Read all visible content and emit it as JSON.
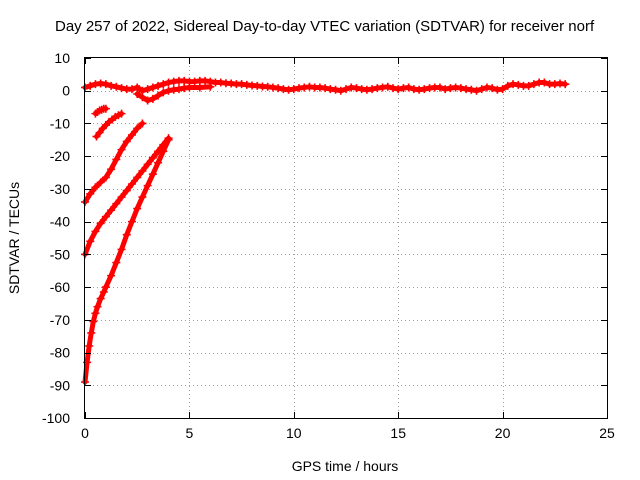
{
  "chart_data": {
    "type": "scatter",
    "title": "Day 257 of 2022, Sidereal Day-to-day VTEC variation (SDTVAR) for receiver norf",
    "xlabel": "GPS time / hours",
    "ylabel": "SDTVAR / TECUs",
    "xlim": [
      0,
      25
    ],
    "ylim": [
      -100,
      10
    ],
    "xticks": [
      0,
      5,
      10,
      15,
      20,
      25
    ],
    "yticks": [
      -100,
      -90,
      -80,
      -70,
      -60,
      -50,
      -40,
      -30,
      -20,
      -10,
      0,
      10
    ],
    "grid": true,
    "marker": "+",
    "color": "#ff0000",
    "series": [
      {
        "x": [
          0.0,
          0.25,
          0.5,
          0.75,
          1.0,
          1.25,
          1.5,
          1.75,
          2.0,
          2.25,
          2.5,
          2.6,
          2.75,
          3.0,
          3.25,
          3.5,
          3.75,
          4.0,
          4.25,
          4.5,
          4.75,
          5.0,
          5.25,
          5.5,
          5.75,
          6.0,
          6.25,
          6.5,
          6.75,
          7.0,
          7.25,
          7.5,
          7.75,
          8.0,
          8.25,
          8.5,
          8.75,
          9.0,
          9.25,
          9.5,
          9.75,
          10.0,
          10.25,
          10.5,
          10.75,
          11.0,
          11.25,
          11.5,
          11.75,
          12.0,
          12.25,
          12.5,
          12.75,
          13.0,
          13.25,
          13.5,
          13.75,
          14.0,
          14.25,
          14.5,
          14.75,
          15.0,
          15.25,
          15.5,
          15.75,
          16.0,
          16.25,
          16.5,
          16.75,
          17.0,
          17.25,
          17.5,
          17.75,
          18.0,
          18.25,
          18.5,
          18.75,
          19.0,
          19.25,
          19.5,
          19.75,
          20.0,
          20.25,
          20.5,
          20.75,
          21.0,
          21.25,
          21.5,
          21.75,
          22.0,
          22.25,
          22.5,
          22.75,
          23.0
        ],
        "y": [
          1.0,
          1.5,
          2.0,
          2.2,
          2.0,
          1.5,
          1.2,
          0.8,
          0.5,
          0.5,
          1.0,
          0.5,
          0.0,
          0.5,
          1.0,
          1.5,
          2.0,
          2.5,
          2.8,
          3.0,
          3.0,
          2.8,
          2.8,
          3.0,
          3.0,
          2.8,
          2.5,
          2.5,
          2.3,
          2.2,
          2.0,
          2.0,
          1.8,
          1.6,
          1.5,
          1.3,
          1.2,
          1.0,
          0.8,
          0.5,
          0.3,
          0.5,
          0.8,
          1.0,
          1.2,
          1.0,
          1.0,
          0.8,
          0.5,
          0.3,
          0.0,
          0.5,
          1.0,
          0.8,
          0.5,
          0.3,
          0.5,
          0.8,
          1.0,
          1.2,
          0.8,
          0.5,
          0.8,
          1.0,
          0.5,
          0.3,
          0.5,
          0.8,
          1.0,
          1.0,
          0.5,
          0.8,
          1.0,
          0.8,
          0.5,
          0.3,
          0.0,
          0.5,
          1.0,
          0.8,
          0.3,
          0.5,
          1.5,
          2.0,
          1.8,
          1.5,
          1.5,
          2.0,
          2.5,
          2.5,
          2.0,
          2.0,
          2.2,
          2.0
        ]
      },
      {
        "x": [
          2.5,
          2.75,
          3.0,
          3.25,
          3.5,
          3.75,
          4.0,
          4.25,
          4.5,
          4.75,
          5.0,
          5.5,
          6.0
        ],
        "y": [
          -1.0,
          -2.0,
          -3.0,
          -2.5,
          -1.5,
          -0.5,
          0.0,
          0.3,
          0.5,
          0.8,
          1.0,
          1.0,
          1.2
        ]
      },
      {
        "x": [
          0.5,
          0.6,
          0.7,
          0.8,
          0.9,
          1.0
        ],
        "y": [
          -7.0,
          -6.5,
          -6.0,
          -5.8,
          -5.5,
          -5.5
        ]
      },
      {
        "x": [
          0.55,
          0.7,
          0.85,
          1.0,
          1.15,
          1.3,
          1.45,
          1.6,
          1.75
        ],
        "y": [
          -14.0,
          -12.8,
          -11.5,
          -10.5,
          -9.5,
          -8.8,
          -8.0,
          -7.5,
          -7.0
        ]
      },
      {
        "x": [
          0.0,
          0.25,
          0.5,
          0.75,
          1.0,
          1.25,
          1.5,
          1.75,
          2.0,
          2.25,
          2.5,
          2.75
        ],
        "y": [
          -34.0,
          -31.5,
          -29.5,
          -28.0,
          -26.5,
          -24.0,
          -21.0,
          -18.0,
          -15.5,
          -13.5,
          -11.5,
          -10.0
        ]
      },
      {
        "x": [
          0.0,
          0.25,
          0.5,
          0.75,
          1.0,
          1.25,
          1.5,
          1.75,
          2.0,
          2.25,
          2.5,
          2.75,
          3.0,
          3.25,
          3.5,
          3.75,
          4.0
        ],
        "y": [
          -50.0,
          -46.0,
          -43.0,
          -40.5,
          -38.5,
          -36.5,
          -34.5,
          -32.5,
          -30.5,
          -28.5,
          -26.5,
          -24.5,
          -22.5,
          -20.5,
          -18.5,
          -16.5,
          -14.5
        ]
      },
      {
        "x": [
          0.0,
          0.1,
          0.2,
          0.3,
          0.4,
          0.5,
          0.6,
          0.75,
          0.9,
          1.0,
          1.25,
          1.5,
          1.75,
          2.0,
          2.25,
          2.5,
          2.75,
          3.0,
          3.25,
          3.5,
          3.75,
          4.0
        ],
        "y": [
          -89.0,
          -83.0,
          -78.0,
          -74.0,
          -70.5,
          -68.0,
          -66.0,
          -63.5,
          -61.5,
          -60.0,
          -56.5,
          -52.5,
          -48.5,
          -44.0,
          -40.0,
          -36.0,
          -32.5,
          -29.0,
          -25.5,
          -22.0,
          -18.5,
          -15.0
        ]
      }
    ]
  }
}
